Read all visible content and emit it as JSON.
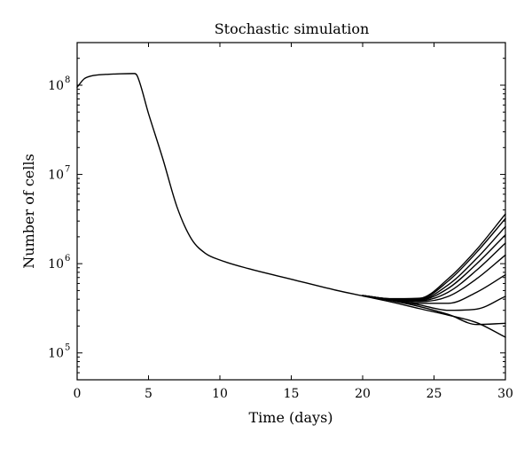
{
  "chart_data": {
    "type": "line",
    "title": "Stochastic simulation",
    "xlabel": "Time (days)",
    "ylabel": "Number of cells",
    "xlim": [
      0,
      30
    ],
    "ylim": [
      50000,
      300000000
    ],
    "yscale": "log",
    "grid": false,
    "x_ticks": [
      0,
      5,
      10,
      15,
      20,
      25,
      30
    ],
    "x_tick_labels": [
      "0",
      "5",
      "10",
      "15",
      "20",
      "25",
      "30"
    ],
    "y_ticks": [
      100000,
      1000000,
      10000000,
      100000000
    ],
    "y_tick_labels": [
      {
        "base": "10",
        "exp": "5"
      },
      {
        "base": "10",
        "exp": "6"
      },
      {
        "base": "10",
        "exp": "7"
      },
      {
        "base": "10",
        "exp": "8"
      }
    ],
    "series": [
      {
        "points": [
          [
            0,
            95000000
          ],
          [
            0.5,
            118000000
          ],
          [
            1,
            127000000
          ],
          [
            2,
            132000000
          ],
          [
            3,
            134000000
          ],
          [
            4,
            135000000
          ],
          [
            4.2,
            128000000
          ],
          [
            5,
            48000000
          ],
          [
            6,
            15000000
          ],
          [
            7,
            4300000
          ],
          [
            8,
            1900000
          ],
          [
            9,
            1300000
          ],
          [
            10,
            1100000
          ],
          [
            12,
            880000
          ],
          [
            15,
            670000
          ],
          [
            18,
            510000
          ],
          [
            20,
            435000
          ],
          [
            22,
            372000
          ],
          [
            24,
            313000
          ],
          [
            26,
            265000
          ],
          [
            28,
            218000
          ],
          [
            30,
            150000
          ]
        ]
      },
      {
        "points": [
          [
            20,
            436000
          ],
          [
            22,
            385000
          ],
          [
            24,
            330000
          ],
          [
            26,
            270000
          ],
          [
            28,
            208000
          ],
          [
            30,
            215000
          ]
        ]
      },
      {
        "points": [
          [
            20,
            437000
          ],
          [
            22,
            390000
          ],
          [
            24,
            345000
          ],
          [
            26,
            300000
          ],
          [
            28,
            310000
          ],
          [
            30,
            430000
          ]
        ]
      },
      {
        "points": [
          [
            20,
            438000
          ],
          [
            22,
            395000
          ],
          [
            24,
            360000
          ],
          [
            26,
            360000
          ],
          [
            28,
            480000
          ],
          [
            30,
            750000
          ]
        ]
      },
      {
        "points": [
          [
            20,
            438000
          ],
          [
            22,
            397000
          ],
          [
            24,
            375000
          ],
          [
            26,
            430000
          ],
          [
            28,
            680000
          ],
          [
            30,
            1250000
          ]
        ]
      },
      {
        "points": [
          [
            20,
            439000
          ],
          [
            22,
            399000
          ],
          [
            24,
            385000
          ],
          [
            26,
            480000
          ],
          [
            28,
            850000
          ],
          [
            30,
            1700000
          ]
        ]
      },
      {
        "points": [
          [
            20,
            439000
          ],
          [
            22,
            400000
          ],
          [
            24,
            392000
          ],
          [
            26,
            530000
          ],
          [
            28,
            1000000
          ],
          [
            30,
            2100000
          ]
        ]
      },
      {
        "points": [
          [
            20,
            440000
          ],
          [
            22,
            402000
          ],
          [
            24,
            398000
          ],
          [
            26,
            580000
          ],
          [
            28,
            1150000
          ],
          [
            30,
            2600000
          ]
        ]
      },
      {
        "points": [
          [
            20,
            440000
          ],
          [
            22,
            404000
          ],
          [
            24,
            405000
          ],
          [
            26,
            640000
          ],
          [
            28,
            1350000
          ],
          [
            30,
            3200000
          ]
        ]
      },
      {
        "points": [
          [
            20,
            441000
          ],
          [
            22,
            405000
          ],
          [
            24,
            410000
          ],
          [
            26,
            680000
          ],
          [
            28,
            1450000
          ],
          [
            30,
            3600000
          ]
        ]
      }
    ]
  }
}
